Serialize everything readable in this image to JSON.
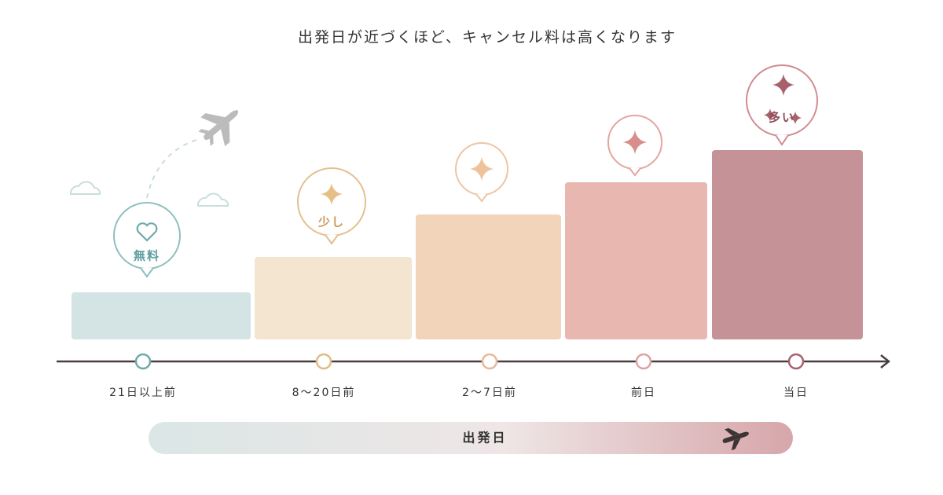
{
  "title": "出発日が近づくほど、キャンセル料は高くなります",
  "stages": [
    {
      "label": "21日以上前",
      "badge": "無料"
    },
    {
      "label": "8〜20日前",
      "badge": "少し"
    },
    {
      "label": "2〜7日前"
    },
    {
      "label": "前日"
    },
    {
      "label": "当日",
      "badge": "多い"
    }
  ],
  "timeline": {
    "label": "出発日"
  }
}
